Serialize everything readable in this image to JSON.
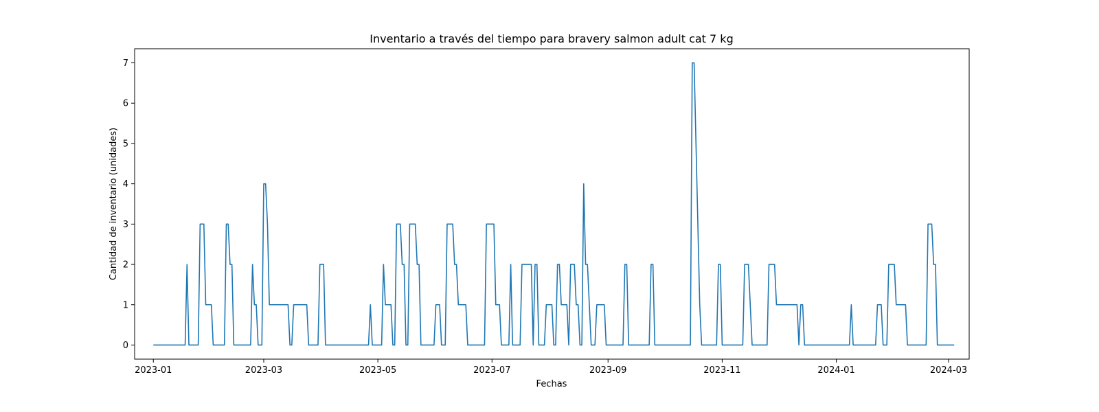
{
  "chart_data": {
    "type": "line",
    "title": "Inventario a través del tiempo para bravery salmon adult cat 7 kg",
    "xlabel": "Fechas",
    "ylabel": "Cantidad de inventario (unidades)",
    "x_type": "date",
    "xlim": [
      "2022-12-22",
      "2024-03-12"
    ],
    "ylim": [
      -0.35,
      7.35
    ],
    "x_ticks": [
      "2023-01-01",
      "2023-03-01",
      "2023-05-01",
      "2023-07-01",
      "2023-09-01",
      "2023-11-01",
      "2024-01-01",
      "2024-03-01"
    ],
    "x_tick_labels": [
      "2023-01",
      "2023-03",
      "2023-05",
      "2023-07",
      "2023-09",
      "2023-11",
      "2024-01",
      "2024-03"
    ],
    "y_ticks": [
      0,
      1,
      2,
      3,
      4,
      5,
      6,
      7
    ],
    "y_tick_labels": [
      "0",
      "1",
      "2",
      "3",
      "4",
      "5",
      "6",
      "7"
    ],
    "grid": false,
    "legend": "none",
    "series": [
      {
        "color": "#1f77b4",
        "points": [
          [
            "2023-01-01",
            0
          ],
          [
            "2023-01-18",
            0
          ],
          [
            "2023-01-19",
            2
          ],
          [
            "2023-01-20",
            0
          ],
          [
            "2023-01-25",
            0
          ],
          [
            "2023-01-26",
            3
          ],
          [
            "2023-01-28",
            3
          ],
          [
            "2023-01-29",
            1
          ],
          [
            "2023-02-01",
            1
          ],
          [
            "2023-02-02",
            0
          ],
          [
            "2023-02-08",
            0
          ],
          [
            "2023-02-09",
            3
          ],
          [
            "2023-02-10",
            3
          ],
          [
            "2023-02-11",
            2
          ],
          [
            "2023-02-12",
            2
          ],
          [
            "2023-02-13",
            0
          ],
          [
            "2023-02-22",
            0
          ],
          [
            "2023-02-23",
            2
          ],
          [
            "2023-02-24",
            1
          ],
          [
            "2023-02-25",
            1
          ],
          [
            "2023-02-26",
            0
          ],
          [
            "2023-02-28",
            0
          ],
          [
            "2023-03-01",
            4
          ],
          [
            "2023-03-02",
            4
          ],
          [
            "2023-03-03",
            3
          ],
          [
            "2023-03-04",
            1
          ],
          [
            "2023-03-14",
            1
          ],
          [
            "2023-03-15",
            0
          ],
          [
            "2023-03-16",
            0
          ],
          [
            "2023-03-17",
            1
          ],
          [
            "2023-03-24",
            1
          ],
          [
            "2023-03-25",
            0
          ],
          [
            "2023-03-30",
            0
          ],
          [
            "2023-03-31",
            2
          ],
          [
            "2023-04-02",
            2
          ],
          [
            "2023-04-03",
            0
          ],
          [
            "2023-04-26",
            0
          ],
          [
            "2023-04-27",
            1
          ],
          [
            "2023-04-28",
            0
          ],
          [
            "2023-05-03",
            0
          ],
          [
            "2023-05-04",
            2
          ],
          [
            "2023-05-05",
            1
          ],
          [
            "2023-05-08",
            1
          ],
          [
            "2023-05-09",
            0
          ],
          [
            "2023-05-10",
            0
          ],
          [
            "2023-05-11",
            3
          ],
          [
            "2023-05-13",
            3
          ],
          [
            "2023-05-14",
            2
          ],
          [
            "2023-05-15",
            2
          ],
          [
            "2023-05-16",
            0
          ],
          [
            "2023-05-17",
            0
          ],
          [
            "2023-05-18",
            3
          ],
          [
            "2023-05-21",
            3
          ],
          [
            "2023-05-22",
            2
          ],
          [
            "2023-05-23",
            2
          ],
          [
            "2023-05-24",
            0
          ],
          [
            "2023-05-31",
            0
          ],
          [
            "2023-06-01",
            1
          ],
          [
            "2023-06-03",
            1
          ],
          [
            "2023-06-04",
            0
          ],
          [
            "2023-06-06",
            0
          ],
          [
            "2023-06-07",
            3
          ],
          [
            "2023-06-10",
            3
          ],
          [
            "2023-06-11",
            2
          ],
          [
            "2023-06-12",
            2
          ],
          [
            "2023-06-13",
            1
          ],
          [
            "2023-06-17",
            1
          ],
          [
            "2023-06-18",
            0
          ],
          [
            "2023-06-27",
            0
          ],
          [
            "2023-06-28",
            3
          ],
          [
            "2023-07-02",
            3
          ],
          [
            "2023-07-03",
            1
          ],
          [
            "2023-07-05",
            1
          ],
          [
            "2023-07-06",
            0
          ],
          [
            "2023-07-10",
            0
          ],
          [
            "2023-07-11",
            2
          ],
          [
            "2023-07-12",
            0
          ],
          [
            "2023-07-16",
            0
          ],
          [
            "2023-07-17",
            2
          ],
          [
            "2023-07-22",
            2
          ],
          [
            "2023-07-23",
            0
          ],
          [
            "2023-07-24",
            2
          ],
          [
            "2023-07-25",
            2
          ],
          [
            "2023-07-26",
            0
          ],
          [
            "2023-07-29",
            0
          ],
          [
            "2023-07-30",
            1
          ],
          [
            "2023-08-02",
            1
          ],
          [
            "2023-08-03",
            0
          ],
          [
            "2023-08-04",
            0
          ],
          [
            "2023-08-05",
            2
          ],
          [
            "2023-08-06",
            2
          ],
          [
            "2023-08-07",
            1
          ],
          [
            "2023-08-10",
            1
          ],
          [
            "2023-08-11",
            0
          ],
          [
            "2023-08-12",
            2
          ],
          [
            "2023-08-14",
            2
          ],
          [
            "2023-08-15",
            1
          ],
          [
            "2023-08-16",
            1
          ],
          [
            "2023-08-17",
            0
          ],
          [
            "2023-08-18",
            0
          ],
          [
            "2023-08-19",
            4
          ],
          [
            "2023-08-20",
            2
          ],
          [
            "2023-08-21",
            2
          ],
          [
            "2023-08-22",
            1
          ],
          [
            "2023-08-23",
            0
          ],
          [
            "2023-08-25",
            0
          ],
          [
            "2023-08-26",
            1
          ],
          [
            "2023-08-30",
            1
          ],
          [
            "2023-08-31",
            0
          ],
          [
            "2023-09-09",
            0
          ],
          [
            "2023-09-10",
            2
          ],
          [
            "2023-09-11",
            2
          ],
          [
            "2023-09-12",
            0
          ],
          [
            "2023-09-23",
            0
          ],
          [
            "2023-09-24",
            2
          ],
          [
            "2023-09-25",
            2
          ],
          [
            "2023-09-26",
            0
          ],
          [
            "2023-10-15",
            0
          ],
          [
            "2023-10-16",
            7
          ],
          [
            "2023-10-17",
            7
          ],
          [
            "2023-10-20",
            1
          ],
          [
            "2023-10-21",
            0
          ],
          [
            "2023-10-29",
            0
          ],
          [
            "2023-10-30",
            2
          ],
          [
            "2023-10-31",
            2
          ],
          [
            "2023-11-01",
            0
          ],
          [
            "2023-11-12",
            0
          ],
          [
            "2023-11-13",
            2
          ],
          [
            "2023-11-15",
            2
          ],
          [
            "2023-11-17",
            0
          ],
          [
            "2023-11-25",
            0
          ],
          [
            "2023-11-26",
            2
          ],
          [
            "2023-11-29",
            2
          ],
          [
            "2023-11-30",
            1
          ],
          [
            "2023-12-11",
            1
          ],
          [
            "2023-12-12",
            0
          ],
          [
            "2023-12-13",
            1
          ],
          [
            "2023-12-14",
            1
          ],
          [
            "2023-12-15",
            0
          ],
          [
            "2024-01-08",
            0
          ],
          [
            "2024-01-09",
            1
          ],
          [
            "2024-01-10",
            0
          ],
          [
            "2024-01-22",
            0
          ],
          [
            "2024-01-23",
            1
          ],
          [
            "2024-01-25",
            1
          ],
          [
            "2024-01-26",
            0
          ],
          [
            "2024-01-28",
            0
          ],
          [
            "2024-01-29",
            2
          ],
          [
            "2024-02-01",
            2
          ],
          [
            "2024-02-02",
            1
          ],
          [
            "2024-02-07",
            1
          ],
          [
            "2024-02-08",
            0
          ],
          [
            "2024-02-18",
            0
          ],
          [
            "2024-02-19",
            3
          ],
          [
            "2024-02-21",
            3
          ],
          [
            "2024-02-22",
            2
          ],
          [
            "2024-02-23",
            2
          ],
          [
            "2024-02-24",
            0
          ],
          [
            "2024-03-04",
            0
          ]
        ]
      }
    ]
  }
}
